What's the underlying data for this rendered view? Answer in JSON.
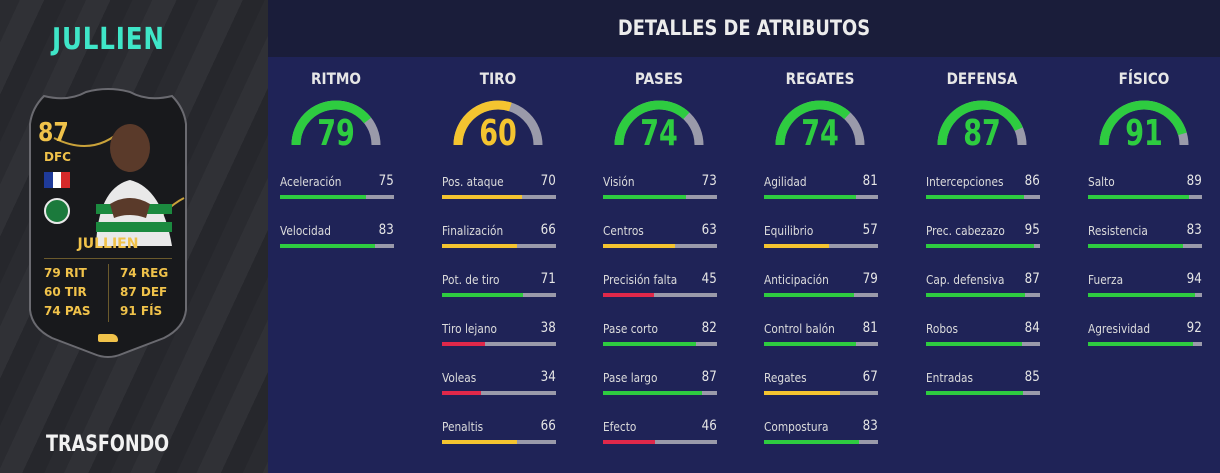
{
  "player": {
    "title": "JULLIEN",
    "background_label": "TRASFONDO"
  },
  "card": {
    "rating": "87",
    "position": "DFC",
    "name": "JULLIEN",
    "stats_left": [
      "79 RIT",
      "60 TIR",
      "74 PAS"
    ],
    "stats_right": [
      "74 REG",
      "87 DEF",
      "91 FÍS"
    ],
    "flag_colors": [
      "#1f3b9a",
      "#ffffff",
      "#d62a2a"
    ]
  },
  "details": {
    "title": "DETALLES DE ATRIBUTOS",
    "colors": {
      "green": "#2ecc40",
      "yellow": "#f4c430",
      "red": "#e0284a",
      "track": "#9a9aaa"
    },
    "categories": [
      {
        "name": "RITMO",
        "value": 79,
        "color": "green",
        "attributes": [
          {
            "label": "Aceleración",
            "value": 75,
            "color": "green"
          },
          {
            "label": "Velocidad",
            "value": 83,
            "color": "green"
          }
        ]
      },
      {
        "name": "TIRO",
        "value": 60,
        "color": "yellow",
        "attributes": [
          {
            "label": "Pos. ataque",
            "value": 70,
            "color": "yellow"
          },
          {
            "label": "Finalización",
            "value": 66,
            "color": "yellow"
          },
          {
            "label": "Pot. de tiro",
            "value": 71,
            "color": "green"
          },
          {
            "label": "Tiro lejano",
            "value": 38,
            "color": "red"
          },
          {
            "label": "Voleas",
            "value": 34,
            "color": "red"
          },
          {
            "label": "Penaltis",
            "value": 66,
            "color": "yellow"
          }
        ]
      },
      {
        "name": "PASES",
        "value": 74,
        "color": "green",
        "attributes": [
          {
            "label": "Visión",
            "value": 73,
            "color": "green"
          },
          {
            "label": "Centros",
            "value": 63,
            "color": "yellow"
          },
          {
            "label": "Precisión falta",
            "value": 45,
            "color": "red"
          },
          {
            "label": "Pase corto",
            "value": 82,
            "color": "green"
          },
          {
            "label": "Pase largo",
            "value": 87,
            "color": "green"
          },
          {
            "label": "Efecto",
            "value": 46,
            "color": "red"
          }
        ]
      },
      {
        "name": "REGATES",
        "value": 74,
        "color": "green",
        "attributes": [
          {
            "label": "Agilidad",
            "value": 81,
            "color": "green"
          },
          {
            "label": "Equilibrio",
            "value": 57,
            "color": "yellow"
          },
          {
            "label": "Anticipación",
            "value": 79,
            "color": "green"
          },
          {
            "label": "Control balón",
            "value": 81,
            "color": "green"
          },
          {
            "label": "Regates",
            "value": 67,
            "color": "yellow"
          },
          {
            "label": "Compostura",
            "value": 83,
            "color": "green"
          }
        ]
      },
      {
        "name": "DEFENSA",
        "value": 87,
        "color": "green",
        "attributes": [
          {
            "label": "Intercepciones",
            "value": 86,
            "color": "green"
          },
          {
            "label": "Prec. cabezazo",
            "value": 95,
            "color": "green"
          },
          {
            "label": "Cap. defensiva",
            "value": 87,
            "color": "green"
          },
          {
            "label": "Robos",
            "value": 84,
            "color": "green"
          },
          {
            "label": "Entradas",
            "value": 85,
            "color": "green"
          }
        ]
      },
      {
        "name": "FÍSICO",
        "value": 91,
        "color": "green",
        "attributes": [
          {
            "label": "Salto",
            "value": 89,
            "color": "green"
          },
          {
            "label": "Resistencia",
            "value": 83,
            "color": "green"
          },
          {
            "label": "Fuerza",
            "value": 94,
            "color": "green"
          },
          {
            "label": "Agresividad",
            "value": 92,
            "color": "green"
          }
        ]
      }
    ]
  }
}
